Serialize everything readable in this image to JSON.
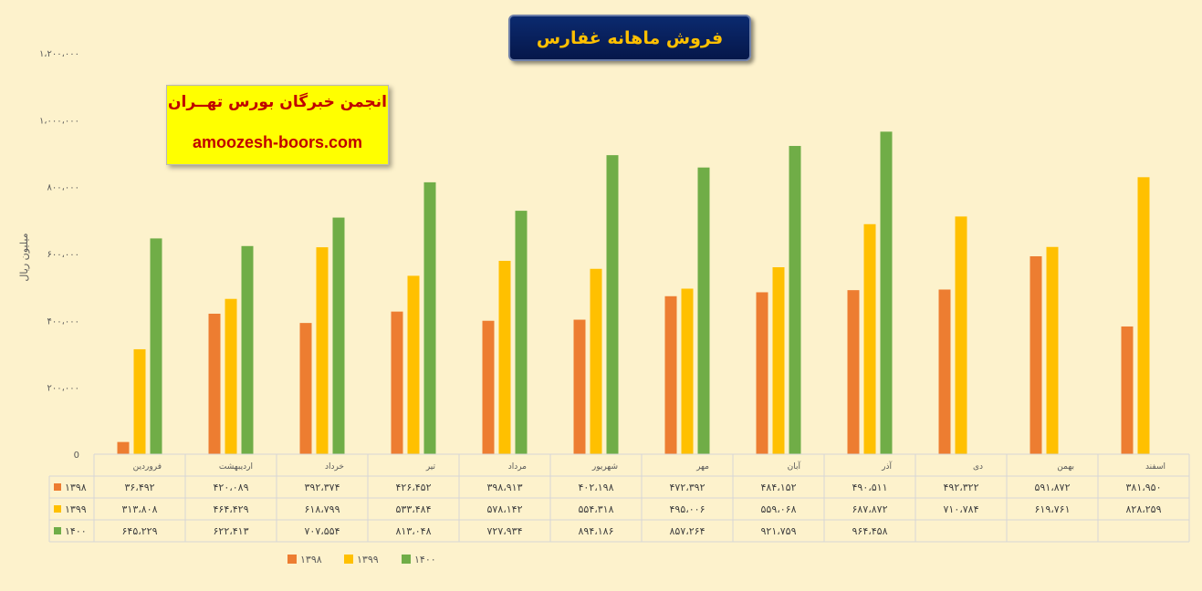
{
  "chart_data": {
    "type": "bar",
    "title": "فروش ماهانه غفارس",
    "ylabel": "میلیون ریال",
    "ylim": [
      0,
      1200000
    ],
    "yticks": [
      0,
      200000,
      400000,
      600000,
      800000,
      1000000,
      1200000
    ],
    "ytick_labels": [
      "0",
      "۲۰۰،۰۰۰",
      "۴۰۰،۰۰۰",
      "۶۰۰،۰۰۰",
      "۸۰۰،۰۰۰",
      "۱،۰۰۰،۰۰۰",
      "۱،۲۰۰،۰۰۰"
    ],
    "grid": false,
    "legend_position": "bottom",
    "categories": [
      "فروردین",
      "اردیبهشت",
      "خرداد",
      "تیر",
      "مرداد",
      "شهریور",
      "مهر",
      "آبان",
      "آذر",
      "دی",
      "بهمن",
      "اسفند"
    ],
    "series": [
      {
        "name": "۱۳۹۸",
        "color": "#ED7D31",
        "values": [
          36492,
          420089,
          392374,
          426452,
          398913,
          402198,
          472392,
          484152,
          490511,
          492322,
          591872,
          381950
        ],
        "labels": [
          "۳۶،۴۹۲",
          "۴۲۰،۰۸۹",
          "۳۹۲،۳۷۴",
          "۴۲۶،۴۵۲",
          "۳۹۸،۹۱۳",
          "۴۰۲،۱۹۸",
          "۴۷۲،۳۹۲",
          "۴۸۴،۱۵۲",
          "۴۹۰،۵۱۱",
          "۴۹۲،۳۲۲",
          "۵۹۱،۸۷۲",
          "۳۸۱،۹۵۰"
        ]
      },
      {
        "name": "۱۳۹۹",
        "color": "#FFC000",
        "values": [
          313808,
          464429,
          618799,
          533484,
          578142,
          554318,
          495006,
          559068,
          687872,
          710784,
          619761,
          828259
        ],
        "labels": [
          "۳۱۳،۸۰۸",
          "۴۶۴،۴۲۹",
          "۶۱۸،۷۹۹",
          "۵۳۳،۴۸۴",
          "۵۷۸،۱۴۲",
          "۵۵۴،۳۱۸",
          "۴۹۵،۰۰۶",
          "۵۵۹،۰۶۸",
          "۶۸۷،۸۷۲",
          "۷۱۰،۷۸۴",
          "۶۱۹،۷۶۱",
          "۸۲۸،۲۵۹"
        ]
      },
      {
        "name": "۱۴۰۰",
        "color": "#70AD47",
        "values": [
          645229,
          622413,
          707554,
          813048,
          727934,
          894186,
          857264,
          921759,
          964458,
          null,
          null,
          null
        ],
        "labels": [
          "۶۴۵،۲۲۹",
          "۶۲۲،۴۱۳",
          "۷۰۷،۵۵۴",
          "۸۱۳،۰۴۸",
          "۷۲۷،۹۳۴",
          "۸۹۴،۱۸۶",
          "۸۵۷،۲۶۴",
          "۹۲۱،۷۵۹",
          "۹۶۴،۴۵۸",
          "",
          "",
          ""
        ]
      }
    ]
  },
  "promo": {
    "line1": "انجمن خبرگان بورس تهــران",
    "line2": "amoozesh-boors.com"
  }
}
